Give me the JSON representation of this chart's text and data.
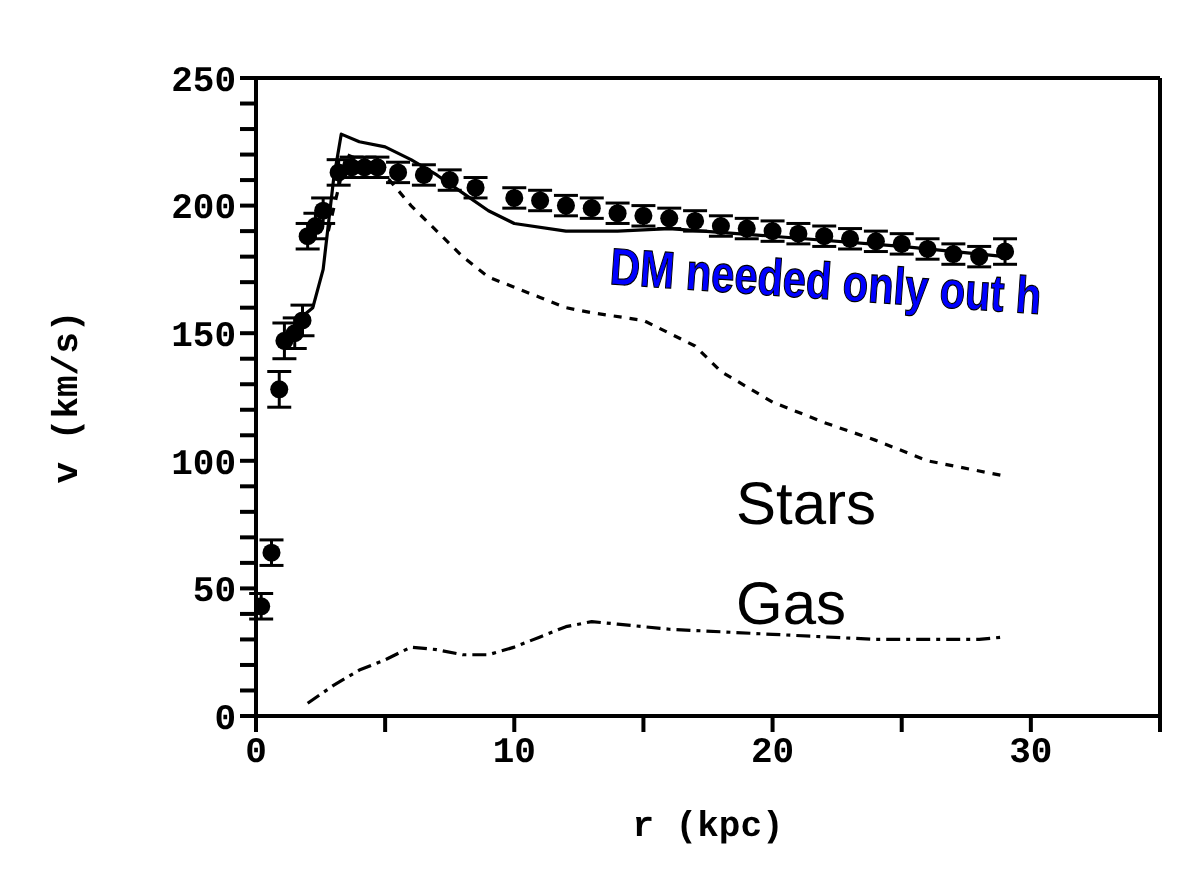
{
  "chart_data": {
    "type": "line",
    "xlabel": "r (kpc)",
    "ylabel": "v (km/s)",
    "xlim": [
      0,
      35
    ],
    "xticks": [
      0,
      {
        "value": 5,
        "label": null
      },
      10,
      {
        "value": 15,
        "label": null
      },
      20,
      {
        "value": 25,
        "label": null
      },
      30,
      {
        "value": 35,
        "label": null
      }
    ],
    "ylim": [
      0,
      250
    ],
    "yticks": [
      0,
      {
        "value": 10,
        "label": null
      },
      {
        "value": 20,
        "label": null
      },
      {
        "value": 30,
        "label": null
      },
      {
        "value": 40,
        "label": null
      },
      50,
      {
        "value": 60,
        "label": null
      },
      {
        "value": 70,
        "label": null
      },
      {
        "value": 80,
        "label": null
      },
      {
        "value": 90,
        "label": null
      },
      100,
      {
        "value": 110,
        "label": null
      },
      {
        "value": 120,
        "label": null
      },
      {
        "value": 130,
        "label": null
      },
      {
        "value": 140,
        "label": null
      },
      150,
      {
        "value": 160,
        "label": null
      },
      {
        "value": 170,
        "label": null
      },
      {
        "value": 180,
        "label": null
      },
      {
        "value": 190,
        "label": null
      },
      200,
      {
        "value": 210,
        "label": null
      },
      {
        "value": 220,
        "label": null
      },
      {
        "value": 230,
        "label": null
      },
      {
        "value": 240,
        "label": null
      },
      250
    ],
    "annotations": [
      "DM needed only out h",
      "Stars",
      "Gas"
    ],
    "series": [
      {
        "type": "scatter",
        "color": "#000000",
        "marker": "circle",
        "x": [
          0.2,
          0.6,
          0.9,
          1.1,
          1.5,
          1.8,
          2.0,
          2.3,
          2.6,
          3.2,
          3.7,
          4.2,
          4.7,
          5.5,
          6.5,
          7.5,
          8.5,
          10,
          11,
          12,
          13,
          14,
          15,
          16,
          17,
          18,
          19,
          20,
          21,
          22,
          23,
          24,
          25,
          26,
          27,
          28,
          29
        ],
        "values": [
          43,
          64,
          128,
          147,
          150,
          155,
          188,
          192,
          198,
          213,
          215,
          215,
          215,
          213,
          212,
          210,
          207,
          203,
          202,
          200,
          199,
          197,
          196,
          195,
          194,
          192,
          191,
          190,
          189,
          188,
          187,
          186,
          185,
          183,
          181,
          180,
          182
        ],
        "errors": [
          5,
          5,
          7,
          7,
          6,
          6,
          5,
          5,
          5,
          5,
          4,
          4,
          4,
          4,
          4,
          4,
          4,
          4,
          4,
          4,
          4,
          4,
          4,
          4,
          4,
          4,
          4,
          4,
          4,
          4,
          4,
          4,
          4,
          4,
          4,
          4,
          5
        ]
      },
      {
        "color": "#000000",
        "line_style": "solid",
        "x": [
          1.0,
          1.6,
          2.2,
          2.6,
          3.0,
          3.3,
          4,
          5,
          6,
          7,
          8,
          9,
          10,
          12,
          14,
          16,
          20,
          25,
          29
        ],
        "values": [
          145,
          155,
          160,
          175,
          210,
          228,
          225,
          223,
          218,
          212,
          205,
          198,
          193,
          190,
          190,
          191,
          188,
          184,
          180
        ]
      },
      {
        "color": "#000000",
        "line_style": "dotted",
        "x": [
          2.8,
          3.5,
          4,
          5,
          6,
          7,
          8,
          9,
          10,
          11,
          12,
          13,
          15,
          17,
          18,
          20,
          22,
          24,
          26,
          28,
          29
        ],
        "values": [
          190,
          220,
          218,
          212,
          200,
          190,
          180,
          172,
          168,
          164,
          160,
          158,
          155,
          145,
          135,
          123,
          115,
          108,
          100,
          96,
          94
        ]
      },
      {
        "color": "#000000",
        "line_style": "dashed",
        "x": [
          2,
          3,
          4,
          5,
          6,
          7,
          8,
          9,
          10,
          11,
          12,
          13,
          14,
          16,
          18,
          20,
          22,
          24,
          26,
          28,
          29
        ],
        "values": [
          5,
          12,
          18,
          22,
          27,
          26,
          24,
          24,
          27,
          31,
          35,
          37,
          36,
          34,
          33,
          32,
          31,
          30,
          30,
          30,
          31
        ]
      }
    ]
  }
}
